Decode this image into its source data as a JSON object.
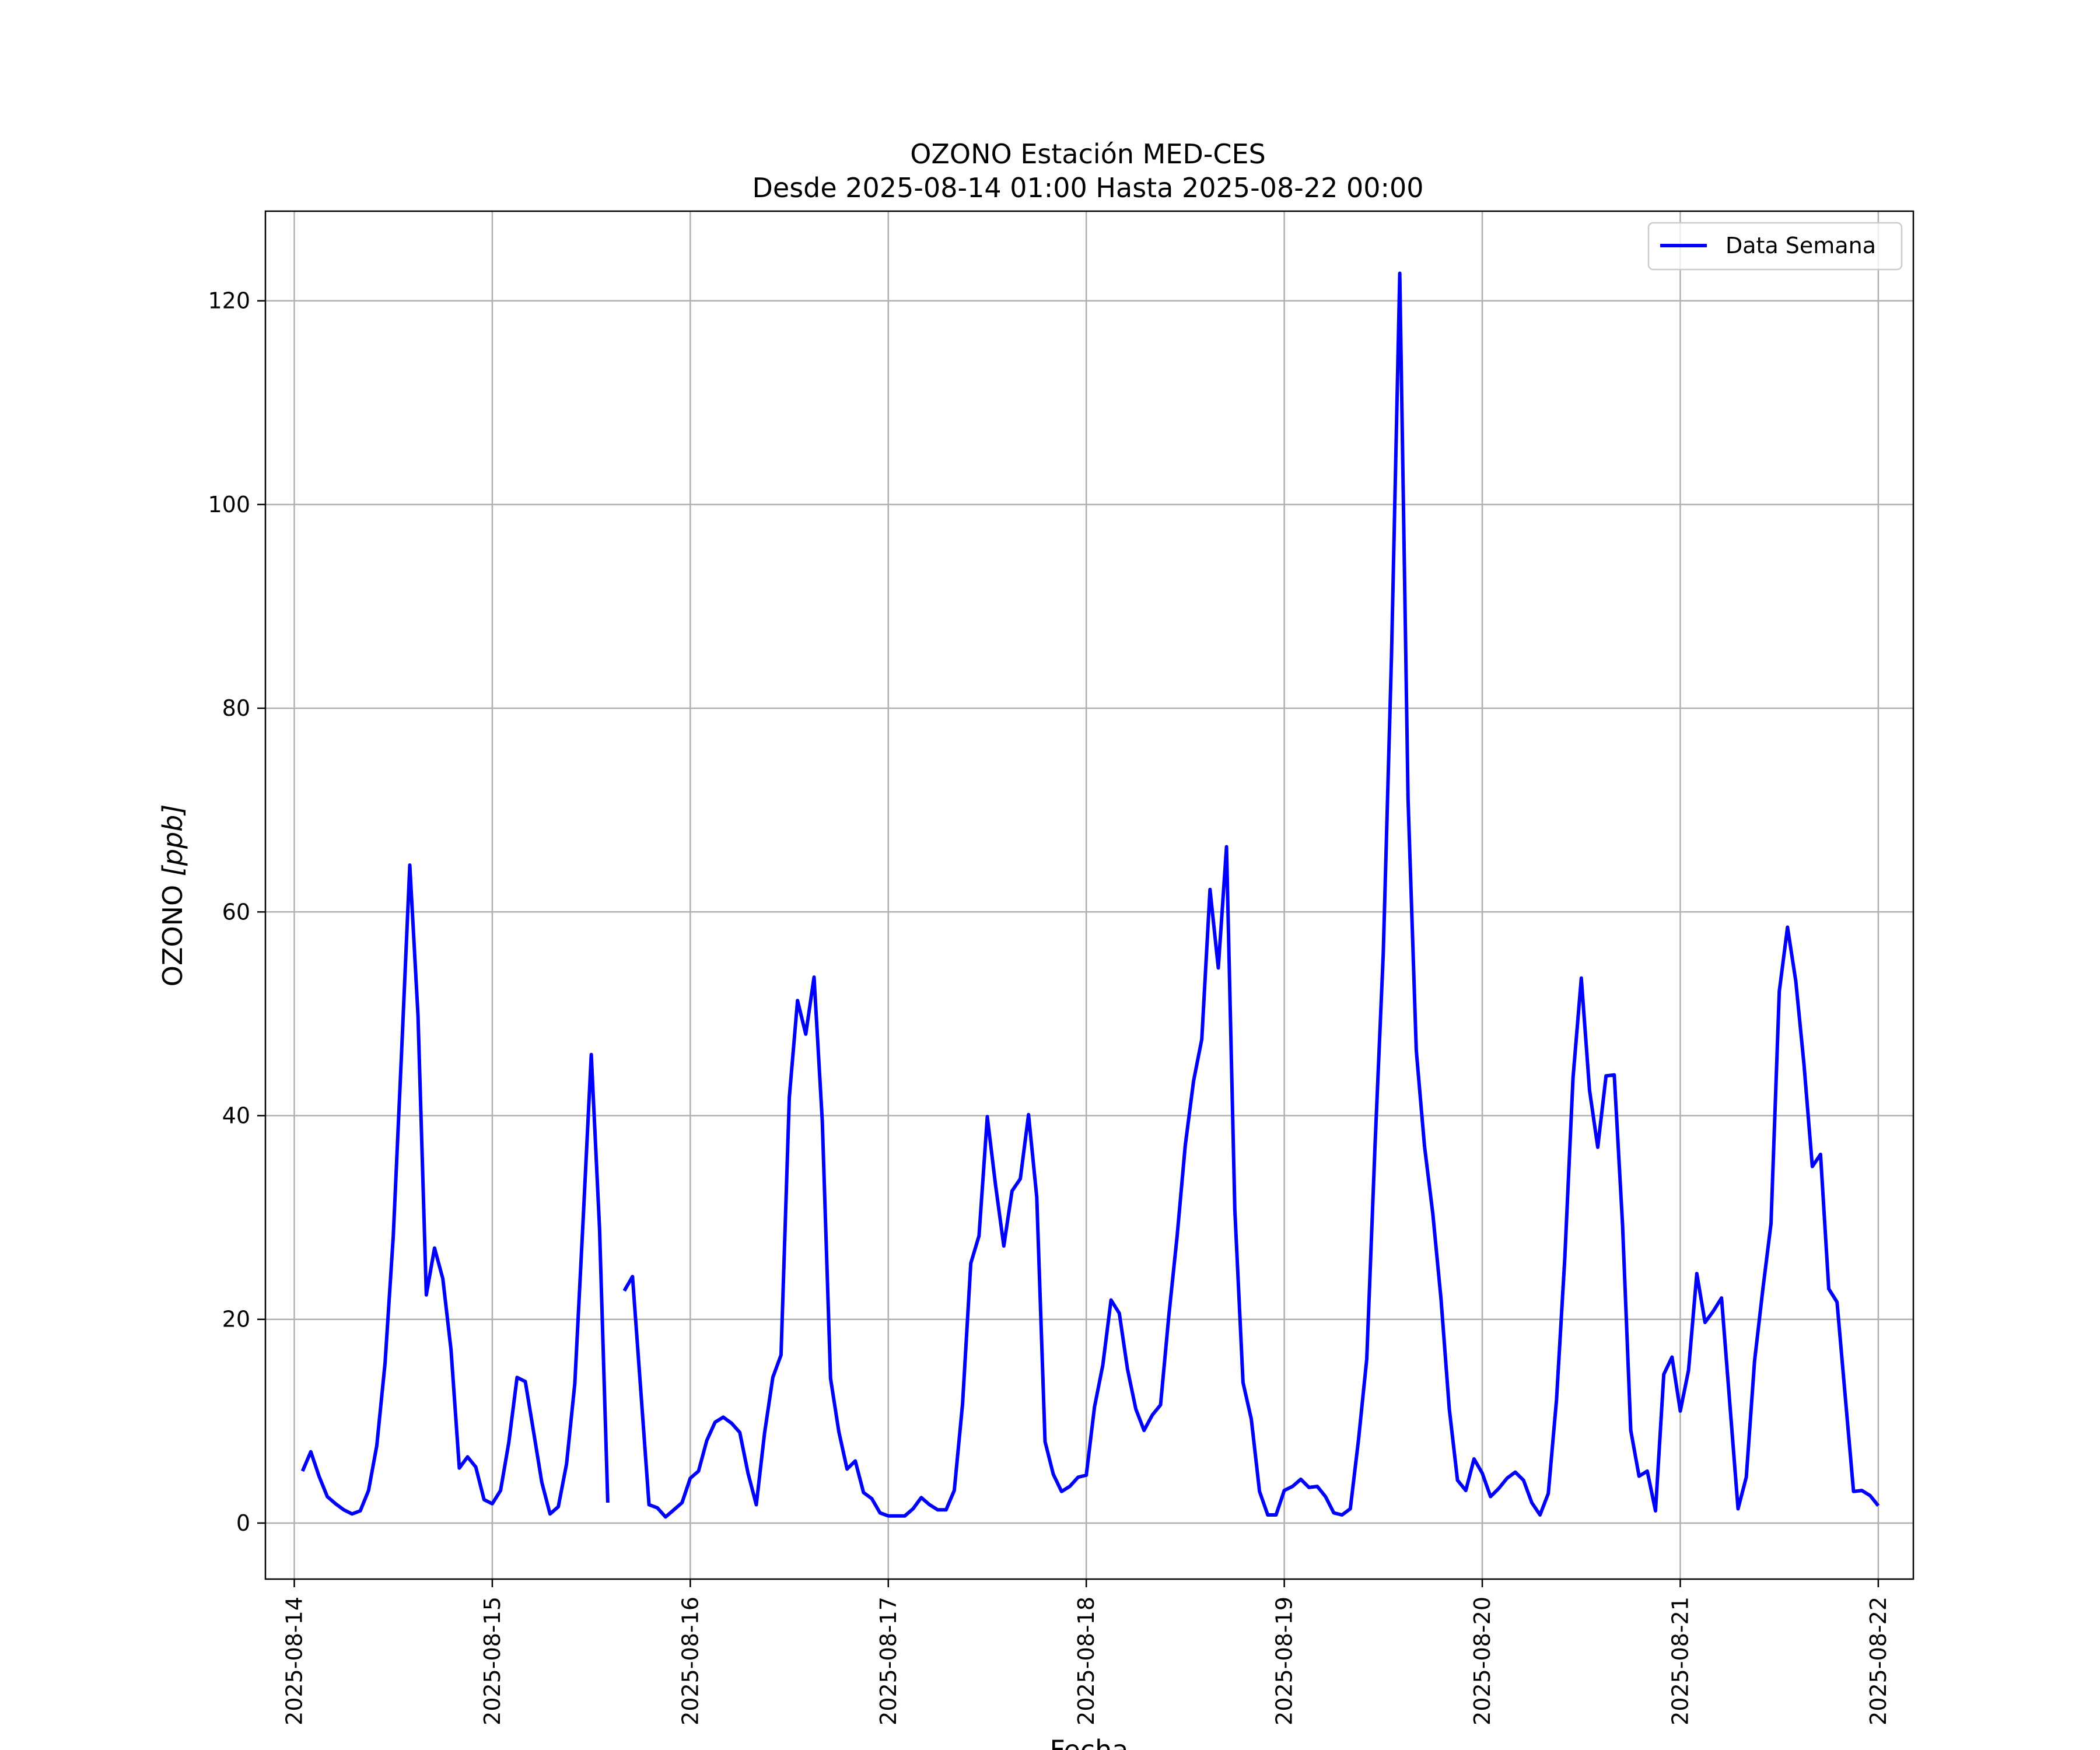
{
  "chart_data": {
    "type": "line",
    "title": "OZONO Estación MED-CES",
    "subtitle": "Desde 2025-08-14 01:00 Hasta 2025-08-22 00:00",
    "xlabel": "Fecha",
    "ylabel": "OZONO [ppb]",
    "ylabel_main": "OZONO ",
    "ylabel_unit": "[ppb]",
    "x_range": [
      "2025-08-13 20:30",
      "2025-08-22 04:15"
    ],
    "ylim": [
      -5.5,
      128.8
    ],
    "grid": true,
    "legend_position": "top-right",
    "x_ticks": [
      "2025-08-14",
      "2025-08-15",
      "2025-08-16",
      "2025-08-17",
      "2025-08-18",
      "2025-08-19",
      "2025-08-20",
      "2025-08-21",
      "2025-08-22"
    ],
    "y_ticks": [
      0,
      20,
      40,
      60,
      80,
      100,
      120
    ],
    "series": [
      {
        "name": "Data Semana",
        "color": "#0000ff",
        "start": "2025-08-14 01:00",
        "step_hours": 1,
        "values": [
          5.1,
          7.0,
          4.6,
          2.6,
          1.9,
          1.3,
          0.9,
          1.2,
          3.2,
          7.6,
          15.7,
          28.2,
          46.2,
          64.6,
          49.8,
          22.4,
          27.0,
          24.0,
          17.0,
          5.4,
          6.5,
          5.5,
          2.3,
          1.9,
          3.2,
          7.9,
          14.3,
          13.9,
          9.0,
          4.0,
          0.9,
          1.6,
          5.8,
          13.7,
          29.6,
          46.0,
          28.9,
          2.0,
          null,
          22.8,
          24.2,
          13.0,
          1.8,
          1.5,
          0.6,
          1.3,
          2.0,
          4.4,
          5.1,
          8.1,
          9.9,
          10.4,
          9.8,
          8.9,
          4.9,
          1.8,
          8.8,
          14.3,
          16.5,
          41.8,
          51.3,
          48.0,
          53.6,
          39.5,
          14.2,
          9.0,
          5.3,
          6.1,
          3.0,
          2.4,
          1.0,
          0.7,
          0.7,
          0.7,
          1.4,
          2.5,
          1.8,
          1.3,
          1.3,
          3.2,
          11.7,
          25.5,
          28.2,
          39.9,
          33.2,
          27.2,
          32.6,
          33.8,
          40.1,
          32.0,
          8.0,
          4.8,
          3.1,
          3.6,
          4.5,
          4.7,
          11.4,
          15.5,
          21.9,
          20.6,
          15.1,
          11.2,
          9.1,
          10.6,
          11.6,
          20.3,
          28.1,
          37.1,
          43.4,
          47.5,
          62.2,
          54.5,
          66.4,
          30.8,
          13.8,
          10.2,
          3.1,
          0.8,
          0.8,
          3.2,
          3.6,
          4.3,
          3.5,
          3.6,
          2.6,
          1.0,
          0.8,
          1.4,
          8.2,
          16.1,
          37.1,
          55.9,
          85.3,
          122.7,
          71.1,
          46.4,
          37.0,
          30.4,
          22.0,
          11.2,
          4.2,
          3.2,
          6.3,
          4.9,
          2.6,
          3.4,
          4.4,
          5.0,
          4.2,
          2.0,
          0.8,
          2.9,
          12.1,
          26.0,
          43.7,
          53.5,
          42.5,
          36.9,
          43.9,
          44.0,
          29.3,
          9.1,
          4.6,
          5.1,
          1.2,
          14.6,
          16.3,
          11.0,
          15.0,
          24.5,
          19.7,
          20.8,
          22.1,
          11.8,
          1.4,
          4.5,
          15.9,
          22.9,
          29.4,
          52.2,
          58.5,
          53.2,
          45.0,
          35.0,
          36.2,
          23.0,
          21.7,
          12.4,
          3.1,
          3.2,
          2.7,
          1.7
        ]
      }
    ]
  }
}
